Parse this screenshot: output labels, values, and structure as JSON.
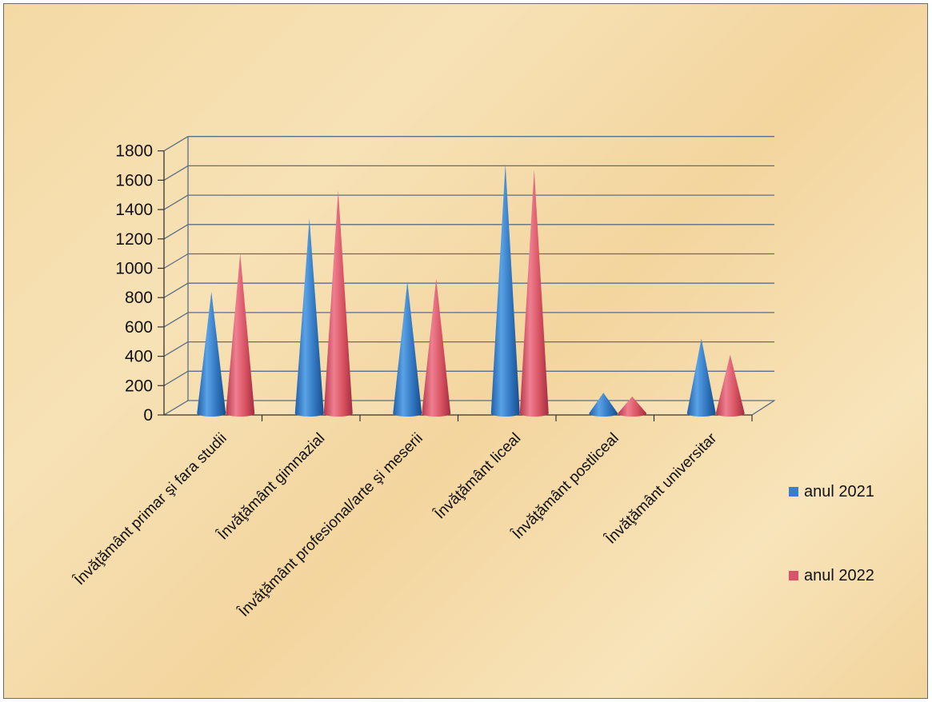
{
  "chart_data": {
    "type": "bar",
    "style": "3d-cone",
    "categories": [
      "Învăţământ primar şi fara studii",
      "Învăţământ gimnazial",
      "Învăţământ profesional/arte şi meserii",
      "Învăţământ liceal",
      "Învăţământ postliceal",
      "Învăţământ universitar"
    ],
    "series": [
      {
        "name": "anul 2021",
        "color": "#3a7fc4",
        "values": [
          830,
          1330,
          900,
          1700,
          140,
          510
        ]
      },
      {
        "name": "anul 2022",
        "color": "#d9546a",
        "values": [
          1090,
          1520,
          920,
          1660,
          115,
          400
        ]
      }
    ],
    "yticks": [
      "0",
      "200",
      "400",
      "600",
      "800",
      "1000",
      "1200",
      "1400",
      "1600",
      "1800"
    ],
    "ylim": [
      0,
      1800
    ],
    "grid": true,
    "legend": "right"
  }
}
